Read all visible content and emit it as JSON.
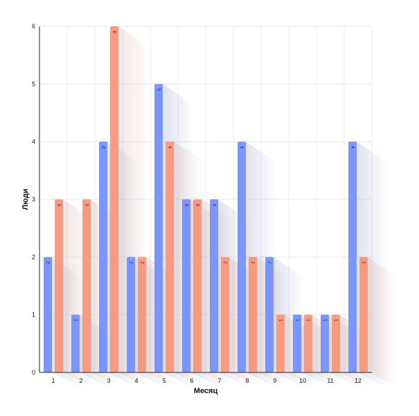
{
  "chart_data": {
    "type": "bar",
    "xlabel": "Месяц",
    "ylabel": "Люди",
    "categories": [
      "1",
      "2",
      "3",
      "4",
      "5",
      "6",
      "7",
      "8",
      "9",
      "10",
      "11",
      "12"
    ],
    "ylim": [
      0,
      6
    ],
    "yticks": [
      "0",
      "1",
      "2",
      "3",
      "4",
      "5",
      "6"
    ],
    "grid": true,
    "series": [
      {
        "values": [
          2,
          1,
          4,
          2,
          5,
          3,
          3,
          4,
          2,
          1,
          1,
          4
        ],
        "color": "#7b96f7"
      },
      {
        "values": [
          3,
          3,
          6,
          2,
          4,
          3,
          2,
          2,
          1,
          1,
          1,
          2
        ],
        "color": "#f79a82"
      }
    ],
    "bar_labels": true
  }
}
